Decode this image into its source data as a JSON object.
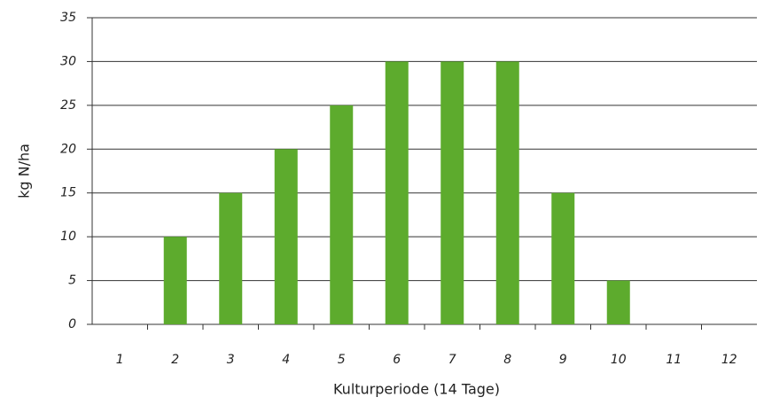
{
  "chart_data": {
    "type": "bar",
    "x_label": "Kulturperiode (14 Tage)",
    "y_label": "kg N/ha",
    "categories": [
      "1",
      "2",
      "3",
      "4",
      "5",
      "6",
      "7",
      "8",
      "9",
      "10",
      "11",
      "12"
    ],
    "values": [
      0,
      10,
      15,
      20,
      25,
      30,
      30,
      30,
      15,
      5,
      0,
      0
    ],
    "color": "#5dab2d",
    "ylim": [
      0,
      35
    ],
    "yticks": [
      0,
      5,
      10,
      15,
      20,
      25,
      30,
      35
    ],
    "grid": true
  }
}
